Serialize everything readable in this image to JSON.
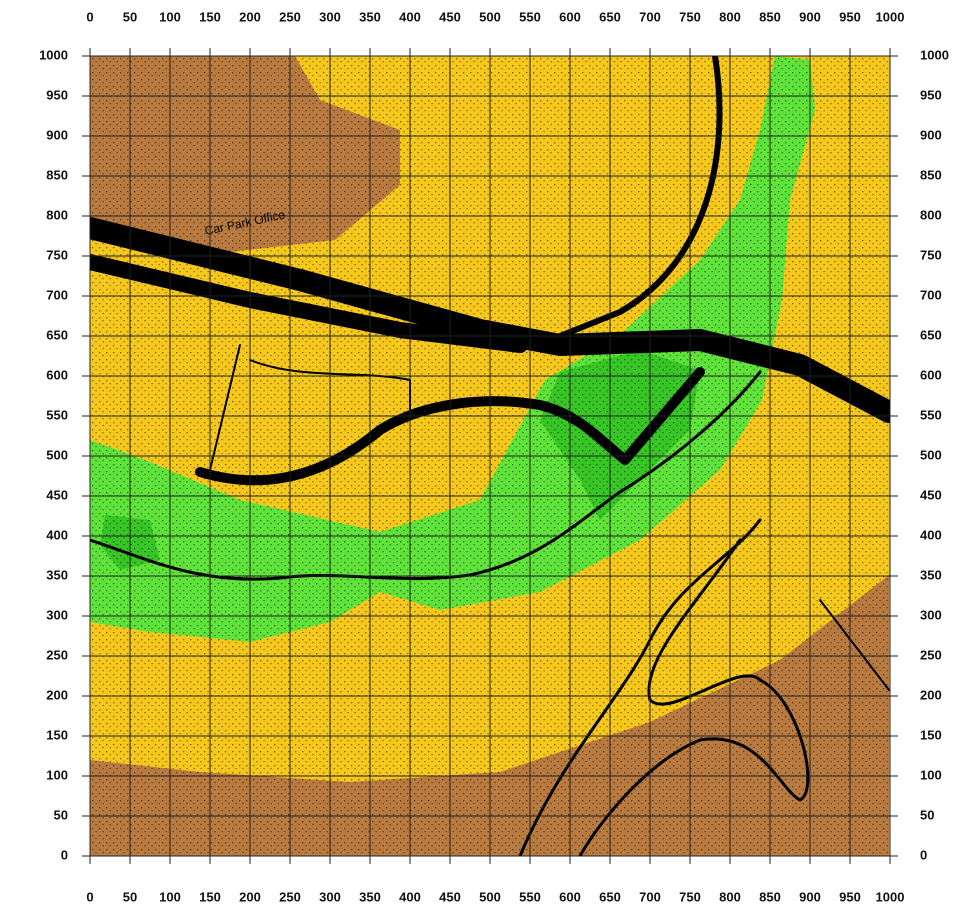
{
  "map": {
    "xlim": [
      0,
      1000
    ],
    "ylim": [
      0,
      1000
    ],
    "xticks": [
      0,
      50,
      100,
      150,
      200,
      250,
      300,
      350,
      400,
      450,
      500,
      550,
      600,
      650,
      700,
      750,
      800,
      850,
      900,
      950,
      1000
    ],
    "yticks": [
      0,
      50,
      100,
      150,
      200,
      250,
      300,
      350,
      400,
      450,
      500,
      550,
      600,
      650,
      700,
      750,
      800,
      850,
      900,
      950,
      1000
    ],
    "annotation": "Car Park Office"
  }
}
